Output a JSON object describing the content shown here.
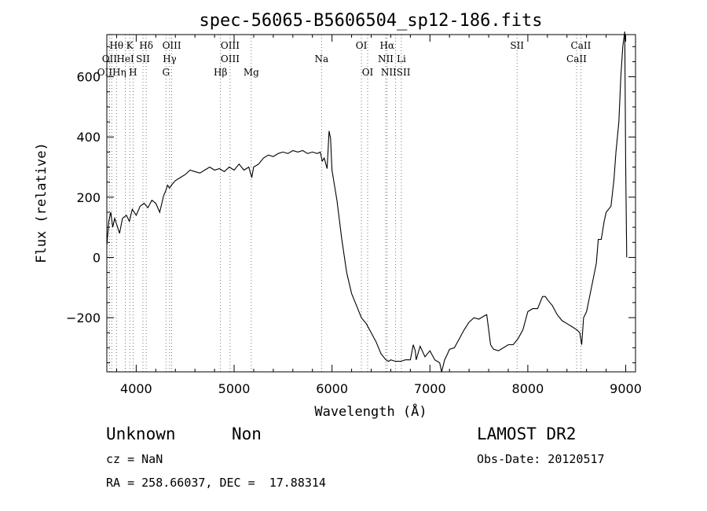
{
  "chart_data": {
    "type": "line",
    "title": "spec-56065-B5606504_sp12-186.fits",
    "xlabel": "Wavelength (Å)",
    "ylabel": "Flux (relative)",
    "xlim": [
      3700,
      9100
    ],
    "ylim": [
      -380,
      740
    ],
    "x_ticks": [
      4000,
      5000,
      6000,
      7000,
      8000,
      9000
    ],
    "y_ticks": [
      -200,
      0,
      200,
      400,
      600
    ],
    "grid": false,
    "series": [
      {
        "x": [
          3700,
          3720,
          3740,
          3760,
          3780,
          3800,
          3830,
          3860,
          3900,
          3930,
          3960,
          4000,
          4040,
          4080,
          4120,
          4160,
          4200,
          4240,
          4280,
          4300,
          4320,
          4340,
          4360,
          4400,
          4450,
          4500,
          4550,
          4600,
          4650,
          4700,
          4750,
          4800,
          4850,
          4900,
          4950,
          5000,
          5050,
          5100,
          5150,
          5180,
          5200,
          5250,
          5300,
          5350,
          5400,
          5450,
          5500,
          5550,
          5600,
          5650,
          5700,
          5750,
          5800,
          5850,
          5880,
          5900,
          5920,
          5950,
          5970,
          5985,
          6000,
          6020,
          6050,
          6100,
          6150,
          6200,
          6250,
          6300,
          6350,
          6400,
          6450,
          6500,
          6550,
          6580,
          6600,
          6650,
          6700,
          6750,
          6800,
          6830,
          6850,
          6860,
          6900,
          6950,
          7000,
          7050,
          7100,
          7120,
          7150,
          7180,
          7200,
          7250,
          7300,
          7350,
          7400,
          7450,
          7500,
          7550,
          7580,
          7600,
          7620,
          7650,
          7700,
          7750,
          7800,
          7850,
          7900,
          7950,
          8000,
          8050,
          8100,
          8150,
          8180,
          8200,
          8250,
          8300,
          8350,
          8400,
          8450,
          8500,
          8530,
          8550,
          8570,
          8600,
          8650,
          8700,
          8720,
          8750,
          8780,
          8800,
          8850,
          8880,
          8900,
          8930,
          8950,
          8970,
          8990,
          9000,
          9010
        ],
        "y": [
          40,
          120,
          150,
          100,
          130,
          110,
          80,
          130,
          140,
          120,
          160,
          140,
          170,
          180,
          165,
          190,
          180,
          150,
          205,
          220,
          240,
          230,
          240,
          255,
          265,
          275,
          290,
          285,
          280,
          290,
          300,
          290,
          295,
          285,
          300,
          290,
          310,
          290,
          300,
          265,
          300,
          310,
          330,
          340,
          335,
          345,
          350,
          345,
          355,
          350,
          355,
          345,
          350,
          345,
          350,
          320,
          330,
          295,
          420,
          395,
          290,
          250,
          190,
          60,
          -50,
          -120,
          -160,
          -200,
          -220,
          -250,
          -280,
          -320,
          -340,
          -345,
          -340,
          -345,
          -345,
          -340,
          -340,
          -290,
          -310,
          -340,
          -295,
          -330,
          -310,
          -340,
          -350,
          -380,
          -340,
          -320,
          -305,
          -300,
          -270,
          -240,
          -215,
          -200,
          -205,
          -195,
          -190,
          -240,
          -290,
          -305,
          -310,
          -300,
          -290,
          -290,
          -270,
          -240,
          -180,
          -170,
          -170,
          -130,
          -130,
          -140,
          -160,
          -190,
          -210,
          -220,
          -230,
          -240,
          -250,
          -290,
          -200,
          -180,
          -100,
          -20,
          60,
          60,
          120,
          150,
          170,
          260,
          350,
          450,
          600,
          700,
          750,
          300,
          0
        ]
      }
    ],
    "annotations": [
      {
        "label": "Hθ",
        "x": 3798,
        "row": 1
      },
      {
        "label": "K",
        "x": 3934,
        "row": 1
      },
      {
        "label": "Hδ",
        "x": 4102,
        "row": 1
      },
      {
        "label": "OIII",
        "x": 4363,
        "row": 1
      },
      {
        "label": "OIII",
        "x": 4959,
        "row": 1
      },
      {
        "label": "OI",
        "x": 6300,
        "row": 1
      },
      {
        "label": "Hα",
        "x": 6563,
        "row": 1
      },
      {
        "label": "SII",
        "x": 7890,
        "row": 1
      },
      {
        "label": "CaII",
        "x": 8542,
        "row": 1
      },
      {
        "label": "OII",
        "x": 3727,
        "row": 2
      },
      {
        "label": "HeI",
        "x": 3889,
        "row": 2
      },
      {
        "label": "SII",
        "x": 4069,
        "row": 2
      },
      {
        "label": "Hγ",
        "x": 4341,
        "row": 2
      },
      {
        "label": "OIII",
        "x": 4959,
        "row": 2
      },
      {
        "label": "Na",
        "x": 5893,
        "row": 2
      },
      {
        "label": "NII",
        "x": 6548,
        "row": 2
      },
      {
        "label": "Li",
        "x": 6708,
        "row": 2
      },
      {
        "label": "CaII",
        "x": 8498,
        "row": 2
      },
      {
        "label": "OIIHη",
        "x": 3750,
        "row": 3
      },
      {
        "label": "H",
        "x": 3968,
        "row": 3
      },
      {
        "label": "G",
        "x": 4304,
        "row": 3
      },
      {
        "label": "Hβ",
        "x": 4861,
        "row": 3
      },
      {
        "label": "Mg",
        "x": 5175,
        "row": 3
      },
      {
        "label": "OI",
        "x": 6364,
        "row": 3
      },
      {
        "label": "NIISII",
        "x": 6650,
        "row": 3
      }
    ]
  },
  "info": {
    "class_label": "Unknown",
    "subclass_label": "Non",
    "survey": "LAMOST DR2",
    "cz": "cz = NaN",
    "obs_date": "Obs-Date: 20120517",
    "coords": "RA = 258.66037, DEC =  17.88314"
  }
}
